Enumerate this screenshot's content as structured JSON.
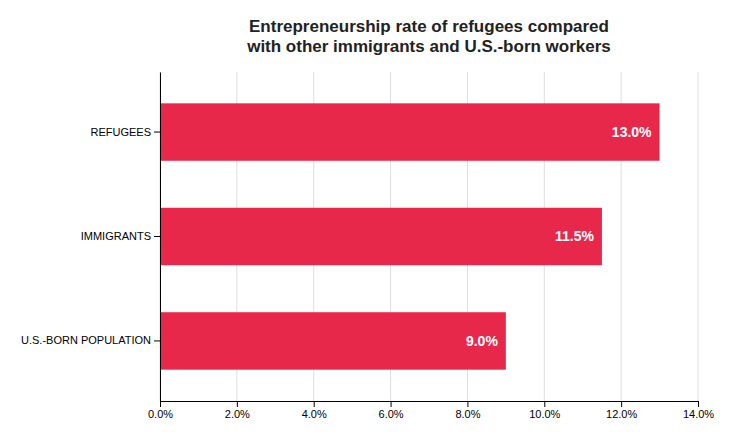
{
  "chart_data": {
    "type": "bar",
    "orientation": "horizontal",
    "title": "Entrepreneurship rate of refugees compared\nwith other immigrants and U.S.-born workers",
    "categories": [
      "U.S.-BORN POPULATION",
      "IMMIGRANTS",
      "REFUGEES"
    ],
    "values": [
      9.0,
      11.5,
      13.0
    ],
    "value_labels": [
      "9.0%",
      "11.5%",
      "13.0%"
    ],
    "data_labels": true,
    "color": "#e8284a",
    "xlim": [
      0,
      14.0
    ],
    "xticks": [
      {
        "value": 0.0,
        "label": "0.0%"
      },
      {
        "value": 2.0,
        "label": "2.0%"
      },
      {
        "value": 4.0,
        "label": "4.0%"
      },
      {
        "value": 6.0,
        "label": "6.0%"
      },
      {
        "value": 8.0,
        "label": "8.0%"
      },
      {
        "value": 10.0,
        "label": "10.0%"
      },
      {
        "value": 12.0,
        "label": "12.0%"
      },
      {
        "value": 14.0,
        "label": "14.0%"
      }
    ],
    "grid": true
  }
}
